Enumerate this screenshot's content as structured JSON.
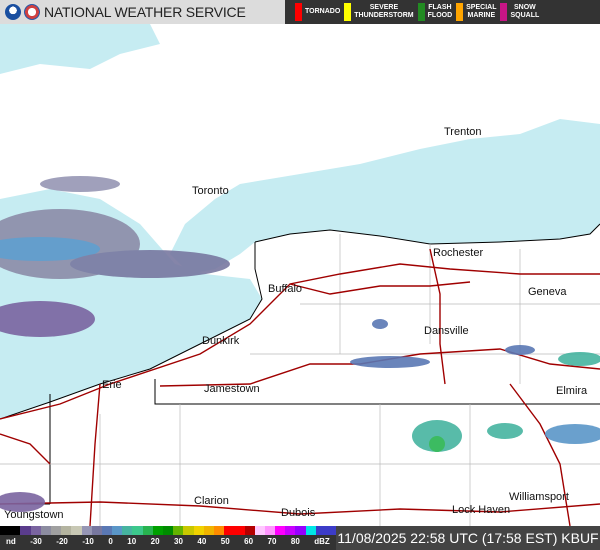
{
  "header": {
    "title": "NATIONAL WEATHER SERVICE",
    "logos": [
      "noaa-logo",
      "nws-logo"
    ]
  },
  "warnings": [
    {
      "label": "TORNADO",
      "color": "#ff0000"
    },
    {
      "label": "SEVERE\nTHUNDERSTORM",
      "color": "#ffff00"
    },
    {
      "label": "FLASH\nFLOOD",
      "color": "#228b22"
    },
    {
      "label": "SPECIAL\nMARINE",
      "color": "#ffa500"
    },
    {
      "label": "SNOW\nSQUALL",
      "color": "#c71585"
    }
  ],
  "map": {
    "cities": [
      "Trenton",
      "Toronto",
      "Rochester",
      "Buffalo",
      "Geneva",
      "Dansville",
      "Dunkirk",
      "Jamestown",
      "Erie",
      "Elmira",
      "Clarion",
      "Dubois",
      "Williamsport",
      "Lock Haven",
      "Youngstown"
    ],
    "colors": {
      "water": "#c6ecf2",
      "land": "#ffffff",
      "highway": "#a00000",
      "border": "#000000"
    }
  },
  "legend": {
    "unit": "dBZ",
    "ticks": [
      "nd",
      "-30",
      "-20",
      "-10",
      "0",
      "10",
      "20",
      "30",
      "40",
      "50",
      "60",
      "70",
      "80",
      "dBZ"
    ],
    "colors": [
      "#000000",
      "#000000",
      "#5a3c8c",
      "#7a64a0",
      "#8c8ca0",
      "#a0a0a0",
      "#b4b4a0",
      "#c8c8b4",
      "#9696b4",
      "#7878a0",
      "#5a78b4",
      "#5a96c8",
      "#46b4a0",
      "#3cc88c",
      "#28b450",
      "#00a000",
      "#008c00",
      "#64b400",
      "#c8c800",
      "#f0d200",
      "#f0b400",
      "#ff8c00",
      "#ff0000",
      "#ff0000",
      "#b40000",
      "#ffc8ff",
      "#ff96ff",
      "#ff00ff",
      "#c800ff",
      "#9600ff",
      "#00e6e6",
      "#3c3cc8",
      "#3c3cc8"
    ]
  },
  "timestamp": "11/08/2025 22:58 UTC (17:58 EST)",
  "station": "KBUF"
}
